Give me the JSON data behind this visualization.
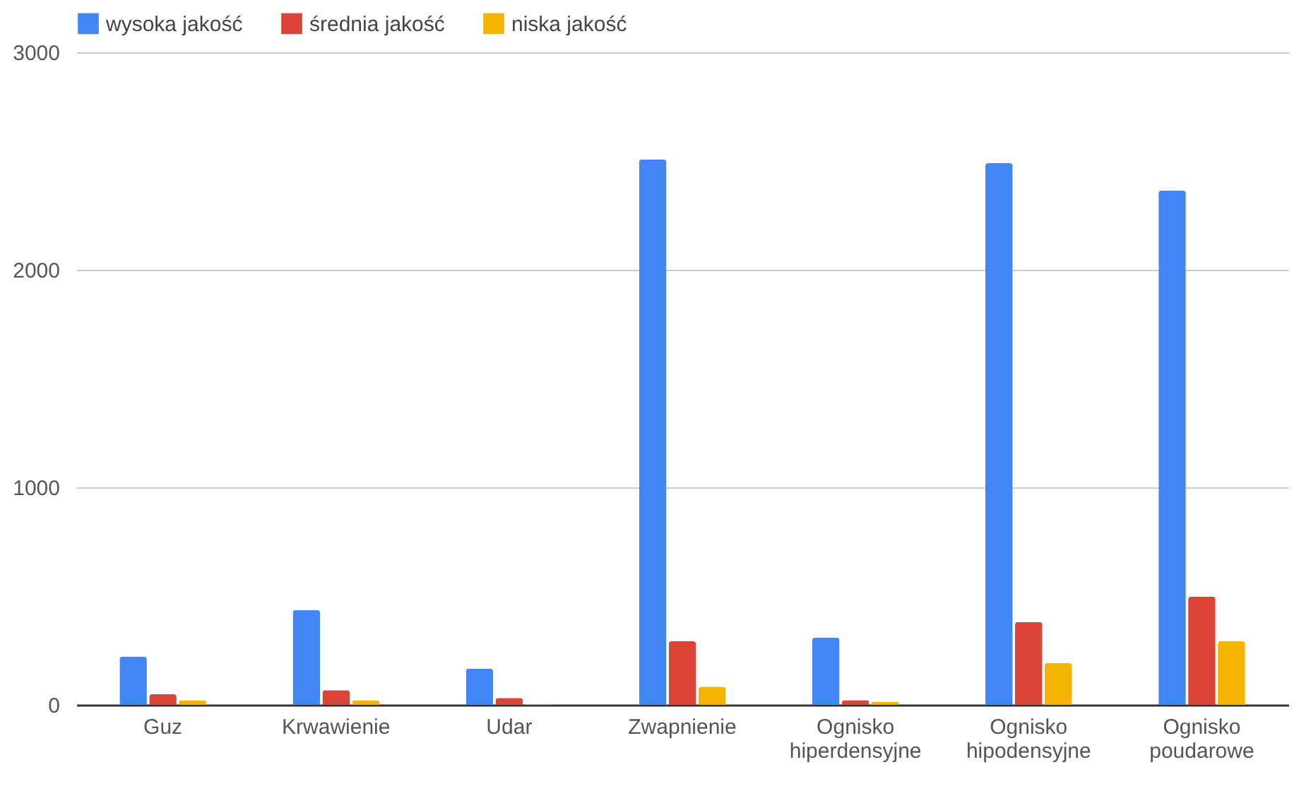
{
  "chart_data": {
    "type": "bar",
    "categories": [
      "Guz",
      "Krwawienie",
      "Udar",
      "Zwapnienie",
      "Ognisko hiperdensyjne",
      "Ognisko hipodensyjne",
      "Ognisko poudarowe"
    ],
    "series": [
      {
        "name": "wysoka jakość",
        "color": "#4285f4",
        "values": [
          221,
          436,
          166,
          2507,
          309,
          2490,
          2364
        ]
      },
      {
        "name": "średnia jakość",
        "color": "#db4437",
        "values": [
          49,
          67,
          32,
          292,
          21,
          381,
          497
        ]
      },
      {
        "name": "niska jakość",
        "color": "#f4b400",
        "values": [
          21,
          21,
          4,
          84,
          14,
          192,
          292
        ]
      }
    ],
    "ylim": [
      0,
      3000
    ],
    "yticks": [
      0,
      1000,
      2000,
      3000
    ],
    "grid": "y",
    "legend": "top"
  }
}
